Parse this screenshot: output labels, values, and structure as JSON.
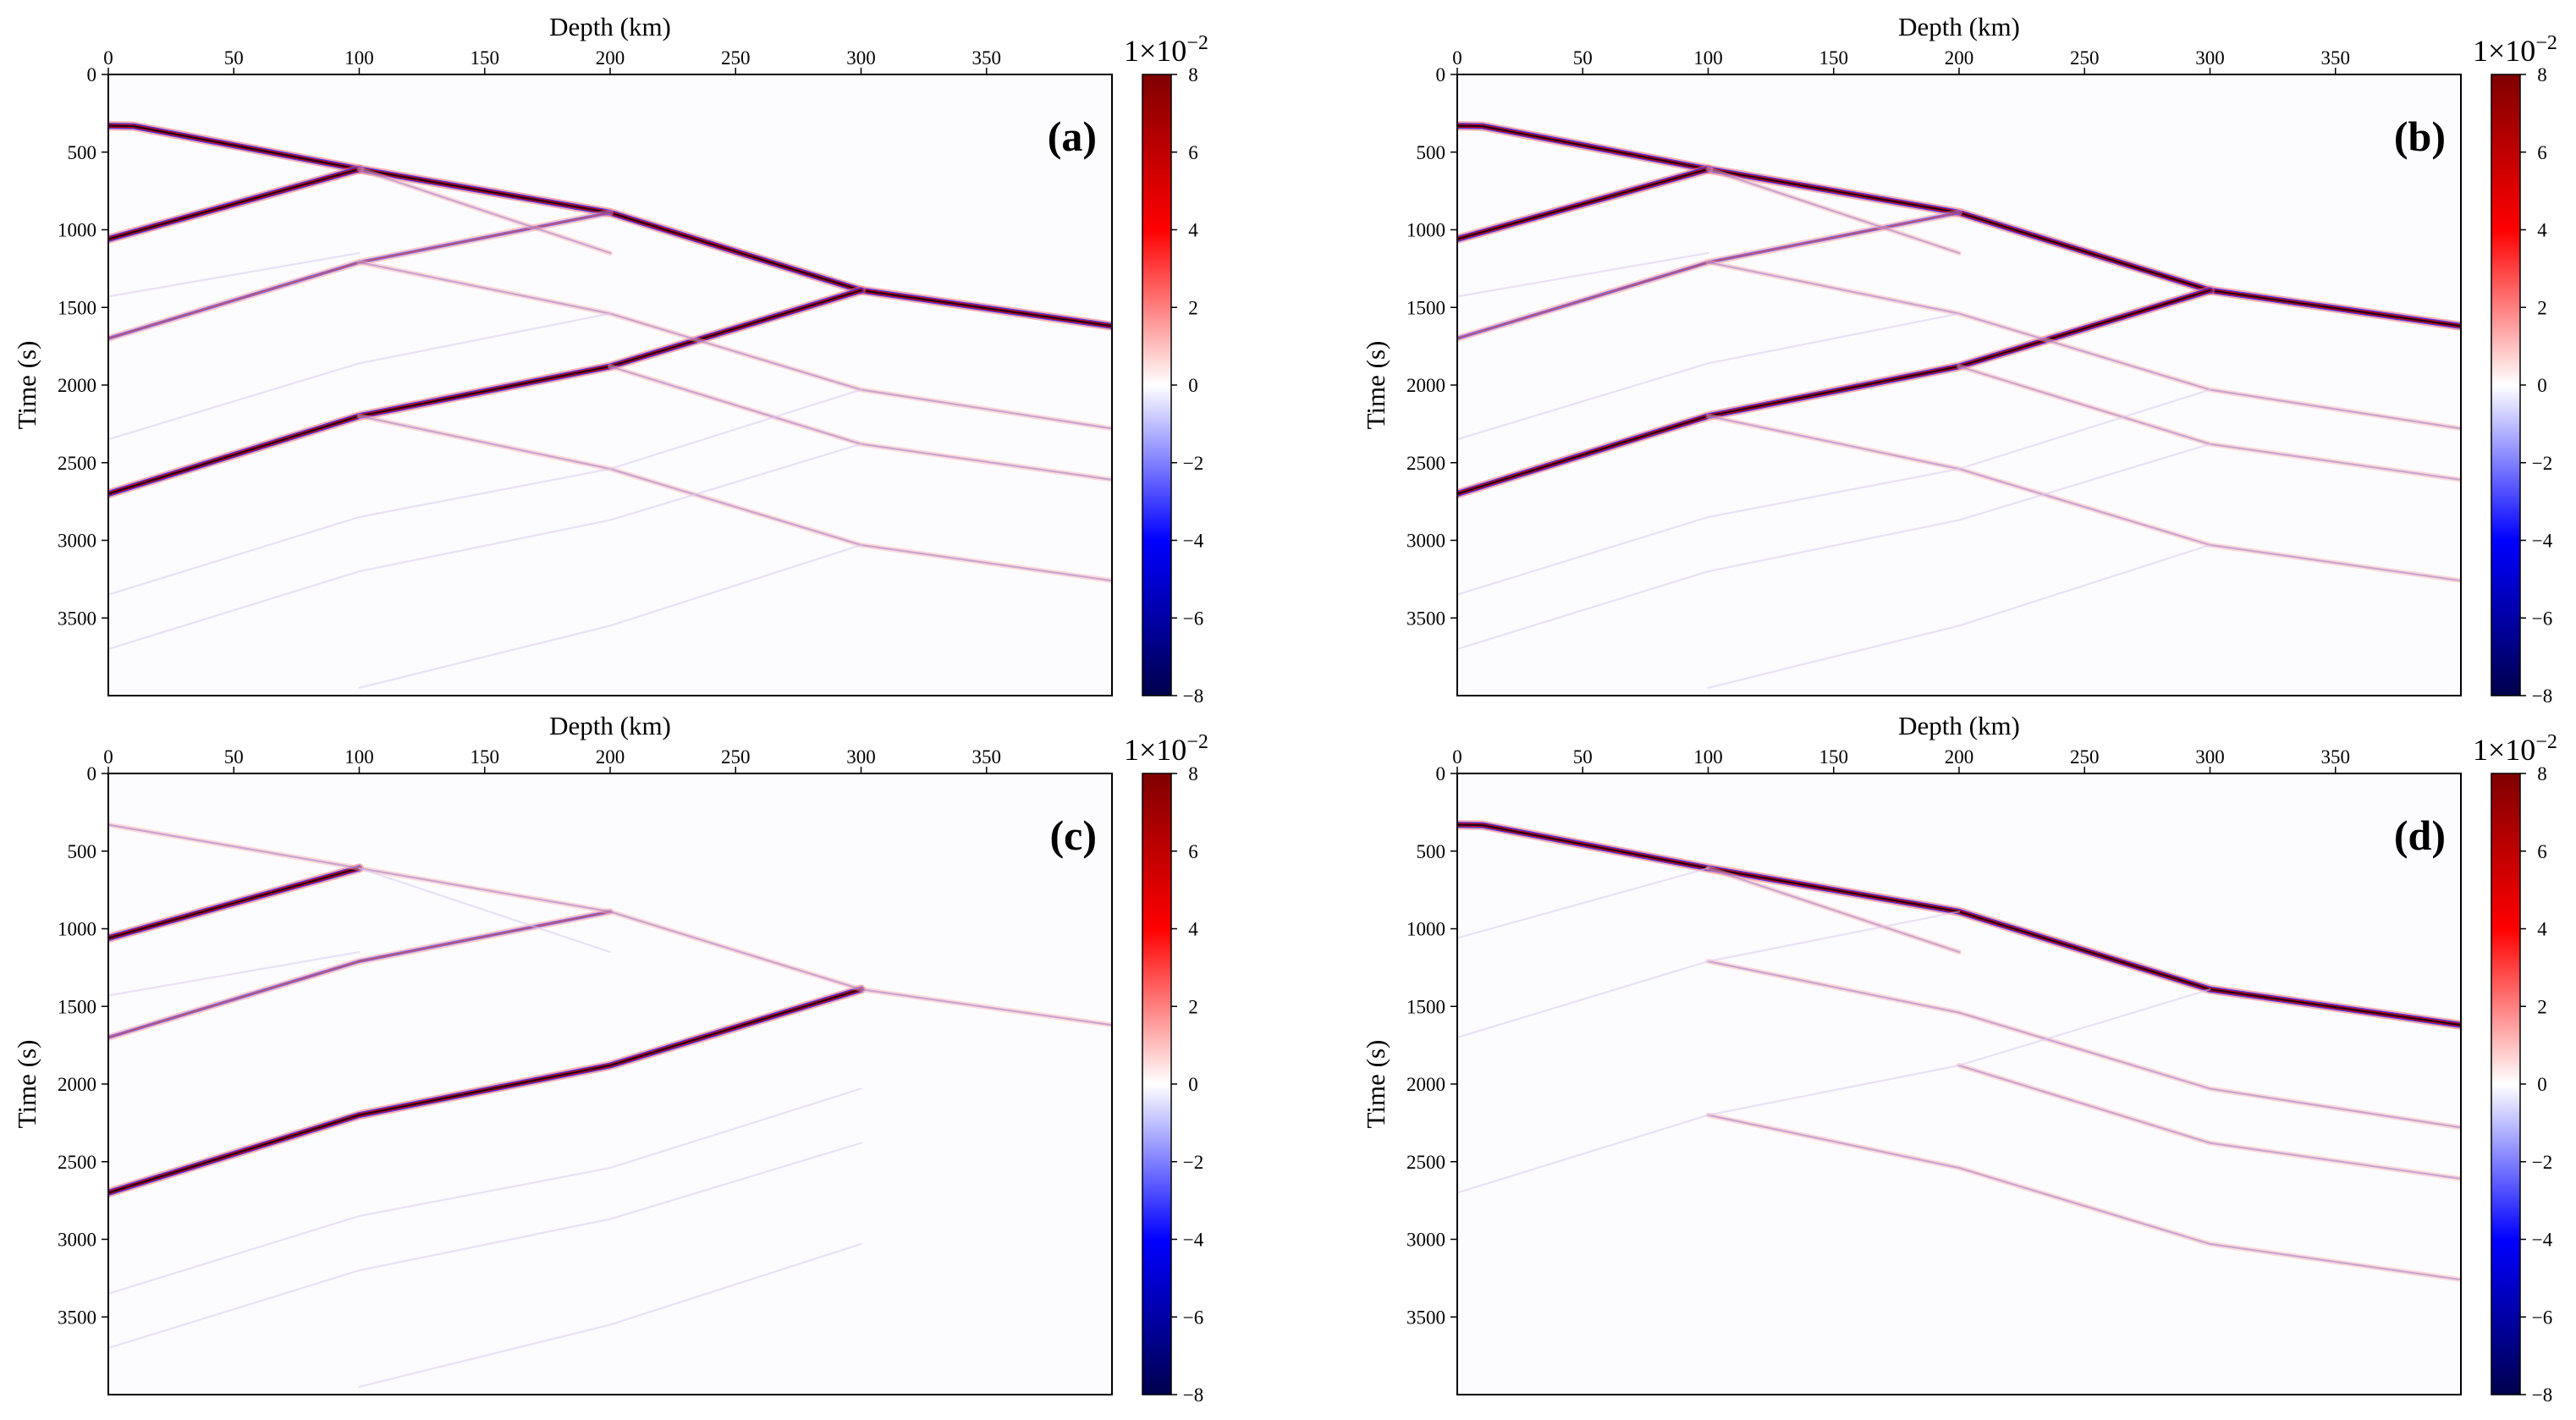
{
  "colors": {
    "background": "#fcfcfe",
    "colormap": [
      "#00004c",
      "#0000ff",
      "#ffffff",
      "#ff0000",
      "#7f0000"
    ]
  },
  "colorbar": {
    "exponent_label": "1×10",
    "exponent_power": "−2",
    "ticks": [
      8,
      6,
      4,
      2,
      0,
      -2,
      -4,
      -6,
      -8
    ],
    "tick_labels": [
      "8",
      "6",
      "4",
      "2",
      "0",
      "−2",
      "−4",
      "−6",
      "−8"
    ]
  },
  "chart_data": [
    {
      "type": "heatmap",
      "panel": "(a)",
      "xlabel": "Depth (km)",
      "ylabel": "Time (s)",
      "xlim": [
        0,
        400
      ],
      "ylim": [
        4000,
        0
      ],
      "xticks": [
        0,
        50,
        100,
        150,
        200,
        250,
        300,
        350
      ],
      "yticks": [
        0,
        500,
        1000,
        1500,
        2000,
        2500,
        3000,
        3500
      ],
      "clim": [
        -0.08,
        0.08
      ],
      "events": [
        {
          "points": [
            [
              0,
              330
            ],
            [
              10,
              333
            ],
            [
              100,
              610
            ],
            [
              200,
              890
            ],
            [
              300,
              1390
            ],
            [
              400,
              1620
            ]
          ],
          "strength": "strong"
        },
        {
          "points": [
            [
              0,
              1060
            ],
            [
              100,
              610
            ]
          ],
          "strength": "strong"
        },
        {
          "points": [
            [
              0,
              1700
            ],
            [
              100,
              1210
            ],
            [
              200,
              890
            ]
          ],
          "strength": "medium"
        },
        {
          "points": [
            [
              0,
              2700
            ],
            [
              100,
              2200
            ],
            [
              200,
              1880
            ],
            [
              300,
              1390
            ]
          ],
          "strength": "strong"
        },
        {
          "points": [
            [
              100,
              610
            ],
            [
              200,
              1150
            ]
          ],
          "strength": "weak"
        },
        {
          "points": [
            [
              100,
              1210
            ],
            [
              200,
              1540
            ],
            [
              300,
              2030
            ],
            [
              400,
              2280
            ]
          ],
          "strength": "weak"
        },
        {
          "points": [
            [
              100,
              2200
            ],
            [
              200,
              2540
            ],
            [
              300,
              3030
            ],
            [
              400,
              3260
            ]
          ],
          "strength": "weak"
        },
        {
          "points": [
            [
              200,
              1880
            ],
            [
              300,
              2380
            ],
            [
              400,
              2610
            ]
          ],
          "strength": "weak"
        },
        {
          "points": [
            [
              0,
              3350
            ],
            [
              100,
              2850
            ],
            [
              200,
              2540
            ],
            [
              300,
              2030
            ]
          ],
          "strength": "faint"
        },
        {
          "points": [
            [
              0,
              3700
            ],
            [
              100,
              3200
            ],
            [
              200,
              2870
            ],
            [
              300,
              2380
            ]
          ],
          "strength": "faint"
        },
        {
          "points": [
            [
              100,
              3950
            ],
            [
              200,
              3550
            ],
            [
              300,
              3030
            ]
          ],
          "strength": "faint"
        },
        {
          "points": [
            [
              0,
              2350
            ],
            [
              100,
              1860
            ],
            [
              200,
              1540
            ]
          ],
          "strength": "faint"
        },
        {
          "points": [
            [
              0,
              1430
            ],
            [
              100,
              1150
            ]
          ],
          "strength": "faint"
        }
      ]
    },
    {
      "type": "heatmap",
      "panel": "(b)",
      "xlabel": "Depth (km)",
      "ylabel": "Time (s)",
      "xlim": [
        0,
        400
      ],
      "ylim": [
        4000,
        0
      ],
      "xticks": [
        0,
        50,
        100,
        150,
        200,
        250,
        300,
        350
      ],
      "yticks": [
        0,
        500,
        1000,
        1500,
        2000,
        2500,
        3000,
        3500
      ],
      "clim": [
        -0.08,
        0.08
      ],
      "events": [
        {
          "points": [
            [
              0,
              330
            ],
            [
              10,
              333
            ],
            [
              100,
              610
            ],
            [
              200,
              890
            ],
            [
              300,
              1390
            ],
            [
              400,
              1620
            ]
          ],
          "strength": "strong"
        },
        {
          "points": [
            [
              0,
              1060
            ],
            [
              100,
              610
            ]
          ],
          "strength": "strong"
        },
        {
          "points": [
            [
              0,
              1700
            ],
            [
              100,
              1210
            ],
            [
              200,
              890
            ]
          ],
          "strength": "medium"
        },
        {
          "points": [
            [
              0,
              2700
            ],
            [
              100,
              2200
            ],
            [
              200,
              1880
            ],
            [
              300,
              1390
            ]
          ],
          "strength": "strong"
        },
        {
          "points": [
            [
              100,
              610
            ],
            [
              200,
              1150
            ]
          ],
          "strength": "weak"
        },
        {
          "points": [
            [
              100,
              1210
            ],
            [
              200,
              1540
            ],
            [
              300,
              2030
            ],
            [
              400,
              2280
            ]
          ],
          "strength": "weak"
        },
        {
          "points": [
            [
              100,
              2200
            ],
            [
              200,
              2540
            ],
            [
              300,
              3030
            ],
            [
              400,
              3260
            ]
          ],
          "strength": "weak"
        },
        {
          "points": [
            [
              200,
              1880
            ],
            [
              300,
              2380
            ],
            [
              400,
              2610
            ]
          ],
          "strength": "weak"
        },
        {
          "points": [
            [
              0,
              3350
            ],
            [
              100,
              2850
            ],
            [
              200,
              2540
            ],
            [
              300,
              2030
            ]
          ],
          "strength": "faint"
        },
        {
          "points": [
            [
              0,
              3700
            ],
            [
              100,
              3200
            ],
            [
              200,
              2870
            ],
            [
              300,
              2380
            ]
          ],
          "strength": "faint"
        },
        {
          "points": [
            [
              100,
              3950
            ],
            [
              200,
              3550
            ],
            [
              300,
              3030
            ]
          ],
          "strength": "faint"
        },
        {
          "points": [
            [
              0,
              2350
            ],
            [
              100,
              1860
            ],
            [
              200,
              1540
            ]
          ],
          "strength": "faint"
        },
        {
          "points": [
            [
              0,
              1430
            ],
            [
              100,
              1150
            ]
          ],
          "strength": "faint"
        }
      ]
    },
    {
      "type": "heatmap",
      "panel": "(c)",
      "xlabel": "Depth (km)",
      "ylabel": "Time (s)",
      "xlim": [
        0,
        400
      ],
      "ylim": [
        4000,
        0
      ],
      "xticks": [
        0,
        50,
        100,
        150,
        200,
        250,
        300,
        350
      ],
      "yticks": [
        0,
        500,
        1000,
        1500,
        2000,
        2500,
        3000,
        3500
      ],
      "clim": [
        -0.08,
        0.08
      ],
      "events": [
        {
          "points": [
            [
              0,
              1060
            ],
            [
              100,
              610
            ]
          ],
          "strength": "strong"
        },
        {
          "points": [
            [
              0,
              1700
            ],
            [
              100,
              1210
            ],
            [
              200,
              890
            ]
          ],
          "strength": "medium"
        },
        {
          "points": [
            [
              0,
              2700
            ],
            [
              100,
              2200
            ],
            [
              200,
              1880
            ],
            [
              300,
              1390
            ]
          ],
          "strength": "strong"
        },
        {
          "points": [
            [
              0,
              330
            ],
            [
              100,
              610
            ],
            [
              200,
              890
            ],
            [
              300,
              1390
            ],
            [
              400,
              1620
            ]
          ],
          "strength": "weak"
        },
        {
          "points": [
            [
              100,
              610
            ],
            [
              200,
              1150
            ]
          ],
          "strength": "faint"
        },
        {
          "points": [
            [
              0,
              3350
            ],
            [
              100,
              2850
            ],
            [
              200,
              2540
            ],
            [
              300,
              2030
            ]
          ],
          "strength": "faint"
        },
        {
          "points": [
            [
              0,
              3700
            ],
            [
              100,
              3200
            ],
            [
              200,
              2870
            ],
            [
              300,
              2380
            ]
          ],
          "strength": "faint"
        },
        {
          "points": [
            [
              100,
              3950
            ],
            [
              200,
              3550
            ],
            [
              300,
              3030
            ]
          ],
          "strength": "faint"
        },
        {
          "points": [
            [
              0,
              1430
            ],
            [
              100,
              1150
            ]
          ],
          "strength": "faint"
        }
      ]
    },
    {
      "type": "heatmap",
      "panel": "(d)",
      "xlabel": "Depth (km)",
      "ylabel": "Time (s)",
      "xlim": [
        0,
        400
      ],
      "ylim": [
        4000,
        0
      ],
      "xticks": [
        0,
        50,
        100,
        150,
        200,
        250,
        300,
        350
      ],
      "yticks": [
        0,
        500,
        1000,
        1500,
        2000,
        2500,
        3000,
        3500
      ],
      "clim": [
        -0.08,
        0.08
      ],
      "events": [
        {
          "points": [
            [
              0,
              330
            ],
            [
              10,
              333
            ],
            [
              100,
              610
            ],
            [
              200,
              890
            ],
            [
              300,
              1390
            ],
            [
              400,
              1620
            ]
          ],
          "strength": "strong"
        },
        {
          "points": [
            [
              100,
              1210
            ],
            [
              200,
              1540
            ],
            [
              300,
              2030
            ],
            [
              400,
              2280
            ]
          ],
          "strength": "weak"
        },
        {
          "points": [
            [
              100,
              2200
            ],
            [
              200,
              2540
            ],
            [
              300,
              3030
            ],
            [
              400,
              3260
            ]
          ],
          "strength": "weak"
        },
        {
          "points": [
            [
              200,
              1880
            ],
            [
              300,
              2380
            ],
            [
              400,
              2610
            ]
          ],
          "strength": "weak"
        },
        {
          "points": [
            [
              100,
              610
            ],
            [
              200,
              1150
            ]
          ],
          "strength": "weak"
        },
        {
          "points": [
            [
              0,
              1060
            ],
            [
              100,
              610
            ]
          ],
          "strength": "faint"
        },
        {
          "points": [
            [
              0,
              1700
            ],
            [
              100,
              1210
            ],
            [
              200,
              890
            ]
          ],
          "strength": "faint"
        },
        {
          "points": [
            [
              0,
              2700
            ],
            [
              100,
              2200
            ],
            [
              200,
              1880
            ],
            [
              300,
              1390
            ]
          ],
          "strength": "faint"
        }
      ]
    }
  ]
}
